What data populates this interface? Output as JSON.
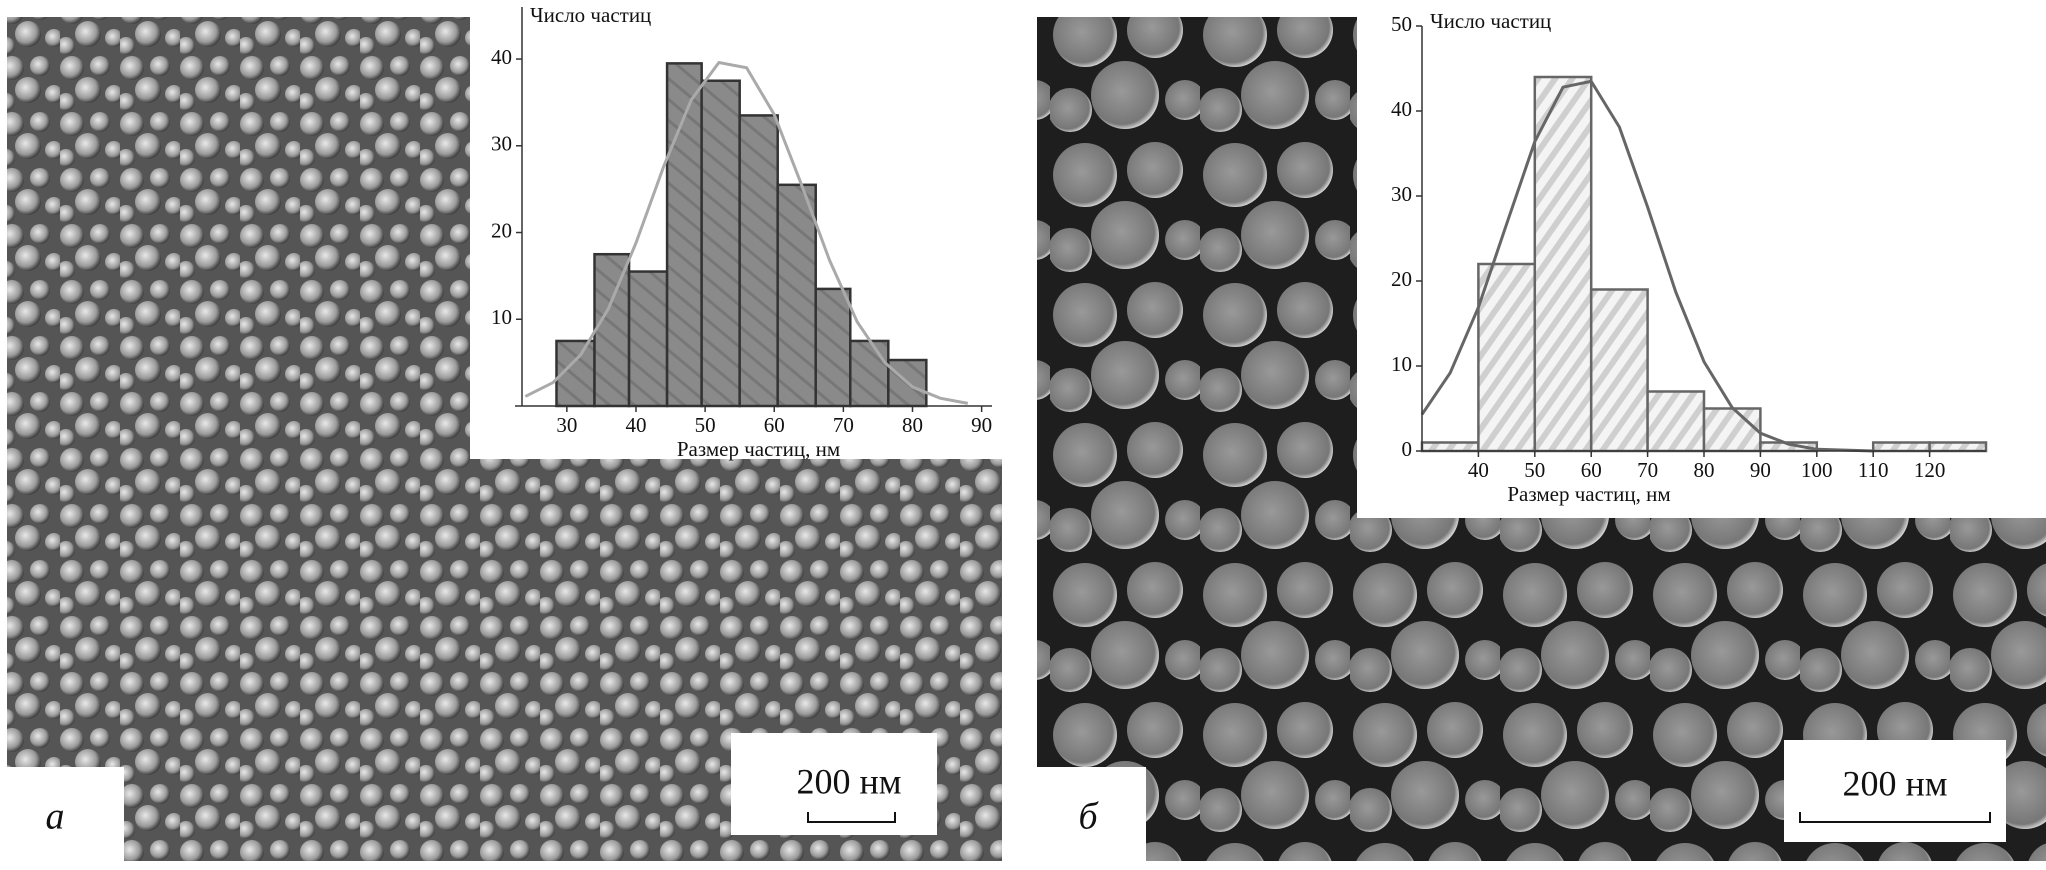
{
  "chart_data": [
    {
      "type": "histogram",
      "ylabel": "Число частиц",
      "xlabel": "Размер частиц, нм",
      "bins": [
        28.5,
        34,
        39,
        44.5,
        49.5,
        55,
        60.5,
        66,
        71,
        76.5,
        82
      ],
      "counts": [
        7.5,
        17.5,
        15.5,
        39.5,
        37.5,
        33.5,
        25.5,
        13.5,
        7.5,
        5.3
      ],
      "color": "#8a8a8a",
      "xlim": [
        22.5,
        91.5
      ],
      "ylim": [
        0,
        46
      ],
      "xticks": [
        30,
        40,
        50,
        60,
        70,
        80,
        90
      ],
      "yticks": [
        10,
        20,
        30,
        40
      ],
      "curve": {
        "x": [
          24,
          28,
          32,
          36,
          40,
          44,
          48,
          52,
          56,
          60,
          64,
          68,
          72,
          76,
          80,
          84,
          88
        ],
        "values": [
          1.1,
          2.7,
          5.9,
          11.2,
          18.8,
          27.6,
          35.3,
          39.6,
          39.0,
          33.6,
          25.4,
          16.8,
          9.7,
          5.0,
          2.2,
          0.9,
          0.3
        ]
      }
    },
    {
      "type": "histogram",
      "ylabel": "Число частиц",
      "xlabel": "Размер частиц, нм",
      "bins": [
        30,
        40,
        50,
        60,
        70,
        80,
        90,
        100,
        110,
        120,
        130
      ],
      "counts": [
        1,
        22,
        44,
        19,
        7,
        5,
        1,
        0,
        1,
        1
      ],
      "color": "#e2e2e2",
      "xlim": [
        30,
        130
      ],
      "ylim": [
        0,
        50
      ],
      "xticks": [
        40,
        50,
        60,
        70,
        80,
        90,
        100,
        110,
        120
      ],
      "yticks": [
        0,
        10,
        20,
        30,
        40,
        50
      ],
      "curve": {
        "x": [
          30,
          35,
          40,
          45,
          50,
          55,
          60,
          65,
          70,
          75,
          80,
          85,
          90,
          95,
          100,
          105,
          110
        ],
        "values": [
          4.3,
          9.2,
          16.9,
          26.7,
          36.4,
          42.8,
          43.5,
          38.1,
          28.7,
          18.7,
          10.5,
          5.1,
          2.1,
          0.8,
          0.2,
          0.1,
          0.0
        ]
      }
    }
  ],
  "panels": [
    {
      "label": "а",
      "scale": "200 нм"
    },
    {
      "label": "б",
      "scale": "200 нм"
    }
  ]
}
